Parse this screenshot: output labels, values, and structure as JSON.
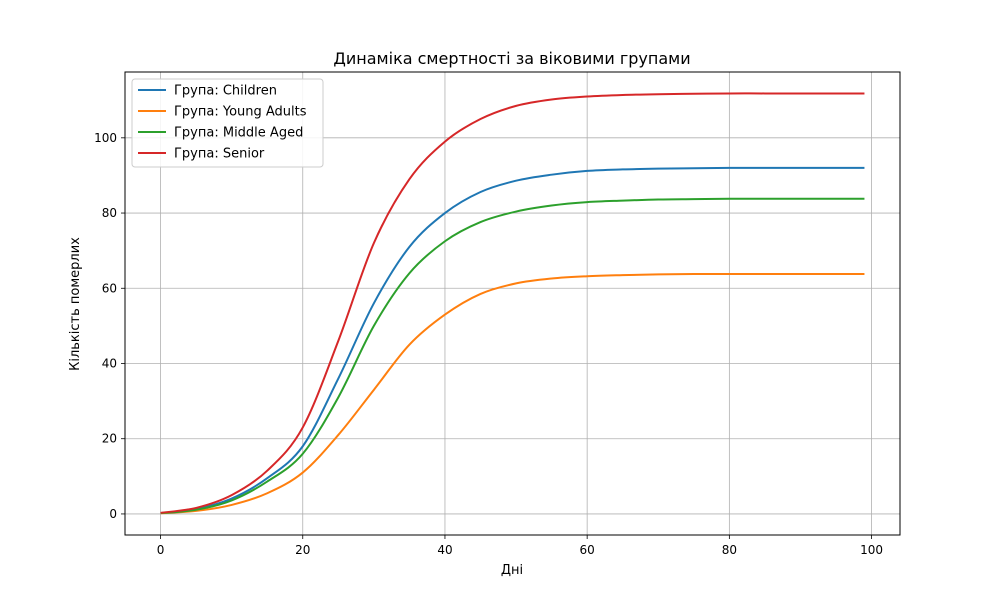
{
  "chart_data": {
    "type": "line",
    "title": "Динаміка смертності за віковими групами",
    "xlabel": "Дні",
    "ylabel": "Кількість померлих",
    "xlim": [
      -5,
      104
    ],
    "ylim": [
      -5.6,
      117.5
    ],
    "xticks": [
      0,
      20,
      40,
      60,
      80,
      100
    ],
    "yticks": [
      0,
      20,
      40,
      60,
      80,
      100
    ],
    "grid": true,
    "legend_position": "top-left",
    "x": [
      0,
      5,
      10,
      15,
      20,
      25,
      30,
      35,
      40,
      45,
      50,
      55,
      60,
      65,
      70,
      75,
      80,
      85,
      90,
      95,
      99
    ],
    "series": [
      {
        "name": "Група: Children",
        "color": "#1f77b4",
        "values": [
          0.2,
          1.3,
          4.1,
          9.5,
          18.0,
          36.0,
          56.0,
          71.0,
          80.0,
          85.6,
          88.6,
          90.2,
          91.2,
          91.6,
          91.8,
          91.9,
          92.0,
          92.0,
          92.0,
          92.0,
          92.0
        ]
      },
      {
        "name": "Група: Young Adults",
        "color": "#ff7f0e",
        "values": [
          0.2,
          0.8,
          2.4,
          5.5,
          11.0,
          21.0,
          33.0,
          45.0,
          53.0,
          58.5,
          61.3,
          62.6,
          63.2,
          63.5,
          63.7,
          63.8,
          63.8,
          63.8,
          63.8,
          63.8,
          63.8
        ]
      },
      {
        "name": "Група: Middle Aged",
        "color": "#2ca02c",
        "values": [
          0.2,
          1.1,
          3.6,
          8.6,
          16.0,
          31.0,
          50.0,
          64.0,
          72.5,
          77.6,
          80.4,
          82.0,
          82.9,
          83.3,
          83.6,
          83.7,
          83.8,
          83.8,
          83.8,
          83.8,
          83.8
        ]
      },
      {
        "name": "Група: Senior",
        "color": "#d62728",
        "values": [
          0.3,
          1.6,
          5.0,
          11.5,
          23.0,
          46.0,
          72.0,
          89.0,
          99.0,
          105.0,
          108.5,
          110.2,
          111.0,
          111.4,
          111.6,
          111.7,
          111.8,
          111.8,
          111.8,
          111.8,
          111.8
        ]
      }
    ]
  }
}
